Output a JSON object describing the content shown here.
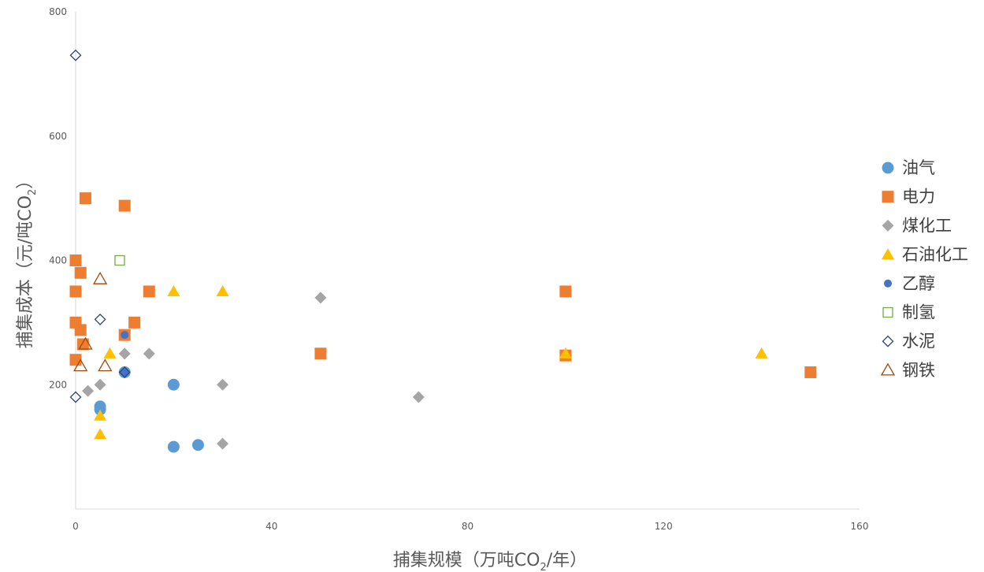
{
  "chart_data": {
    "type": "scatter",
    "title": "",
    "xlabel": {
      "main": "捕集规模（万吨CO",
      "sub": "2",
      "tail": "/年）"
    },
    "ylabel": {
      "main": "捕集成本（元/吨CO",
      "sub": "2",
      "tail": "）"
    },
    "xlim": [
      0,
      160
    ],
    "ylim": [
      0,
      800
    ],
    "xticks": [
      "0",
      "40",
      "80",
      "120",
      "160"
    ],
    "yticks": [
      "200",
      "400",
      "600",
      "800"
    ],
    "legend": "right",
    "grid": false,
    "series": [
      {
        "name": "油气",
        "marker": "circle",
        "color": "#5b9bd5",
        "points": [
          [
            5,
            165
          ],
          [
            5,
            160
          ],
          [
            10,
            220
          ],
          [
            20,
            200
          ],
          [
            20,
            100
          ],
          [
            25,
            103
          ]
        ]
      },
      {
        "name": "电力",
        "marker": "square",
        "color": "#ed7d31",
        "points": [
          [
            2,
            500
          ],
          [
            10,
            488
          ],
          [
            0,
            400
          ],
          [
            1,
            380
          ],
          [
            0,
            350
          ],
          [
            0,
            300
          ],
          [
            1,
            288
          ],
          [
            1.5,
            265
          ],
          [
            0,
            240
          ],
          [
            10,
            280
          ],
          [
            12,
            300
          ],
          [
            15,
            350
          ],
          [
            50,
            250
          ],
          [
            100,
            350
          ],
          [
            100,
            247
          ],
          [
            150,
            220
          ]
        ]
      },
      {
        "name": "煤化工",
        "marker": "diamond",
        "color": "#a5a5a5",
        "points": [
          [
            2.5,
            190
          ],
          [
            5,
            200
          ],
          [
            10,
            250
          ],
          [
            15,
            250
          ],
          [
            30,
            200
          ],
          [
            30,
            105
          ],
          [
            50,
            340
          ],
          [
            70,
            180
          ]
        ]
      },
      {
        "name": "石油化工",
        "marker": "triangle",
        "color": "#ffc000",
        "points": [
          [
            5,
            150
          ],
          [
            5,
            120
          ],
          [
            7,
            250
          ],
          [
            20,
            350
          ],
          [
            30,
            350
          ],
          [
            100,
            250
          ],
          [
            140,
            250
          ]
        ]
      },
      {
        "name": "乙醇",
        "marker": "dot",
        "color": "#4472c4",
        "points": [
          [
            10,
            280
          ],
          [
            10,
            220
          ]
        ]
      },
      {
        "name": "制氢",
        "marker": "square-open",
        "color": "#70ad47",
        "points": [
          [
            9,
            400
          ]
        ]
      },
      {
        "name": "水泥",
        "marker": "diamond-open",
        "color": "#264478",
        "points": [
          [
            0,
            730
          ],
          [
            5,
            305
          ],
          [
            0,
            180
          ],
          [
            10,
            220
          ]
        ]
      },
      {
        "name": "钢铁",
        "marker": "triangle-open",
        "color": "#9e480e",
        "points": [
          [
            5,
            370
          ],
          [
            2,
            265
          ],
          [
            1,
            230
          ],
          [
            6,
            230
          ]
        ]
      }
    ]
  }
}
